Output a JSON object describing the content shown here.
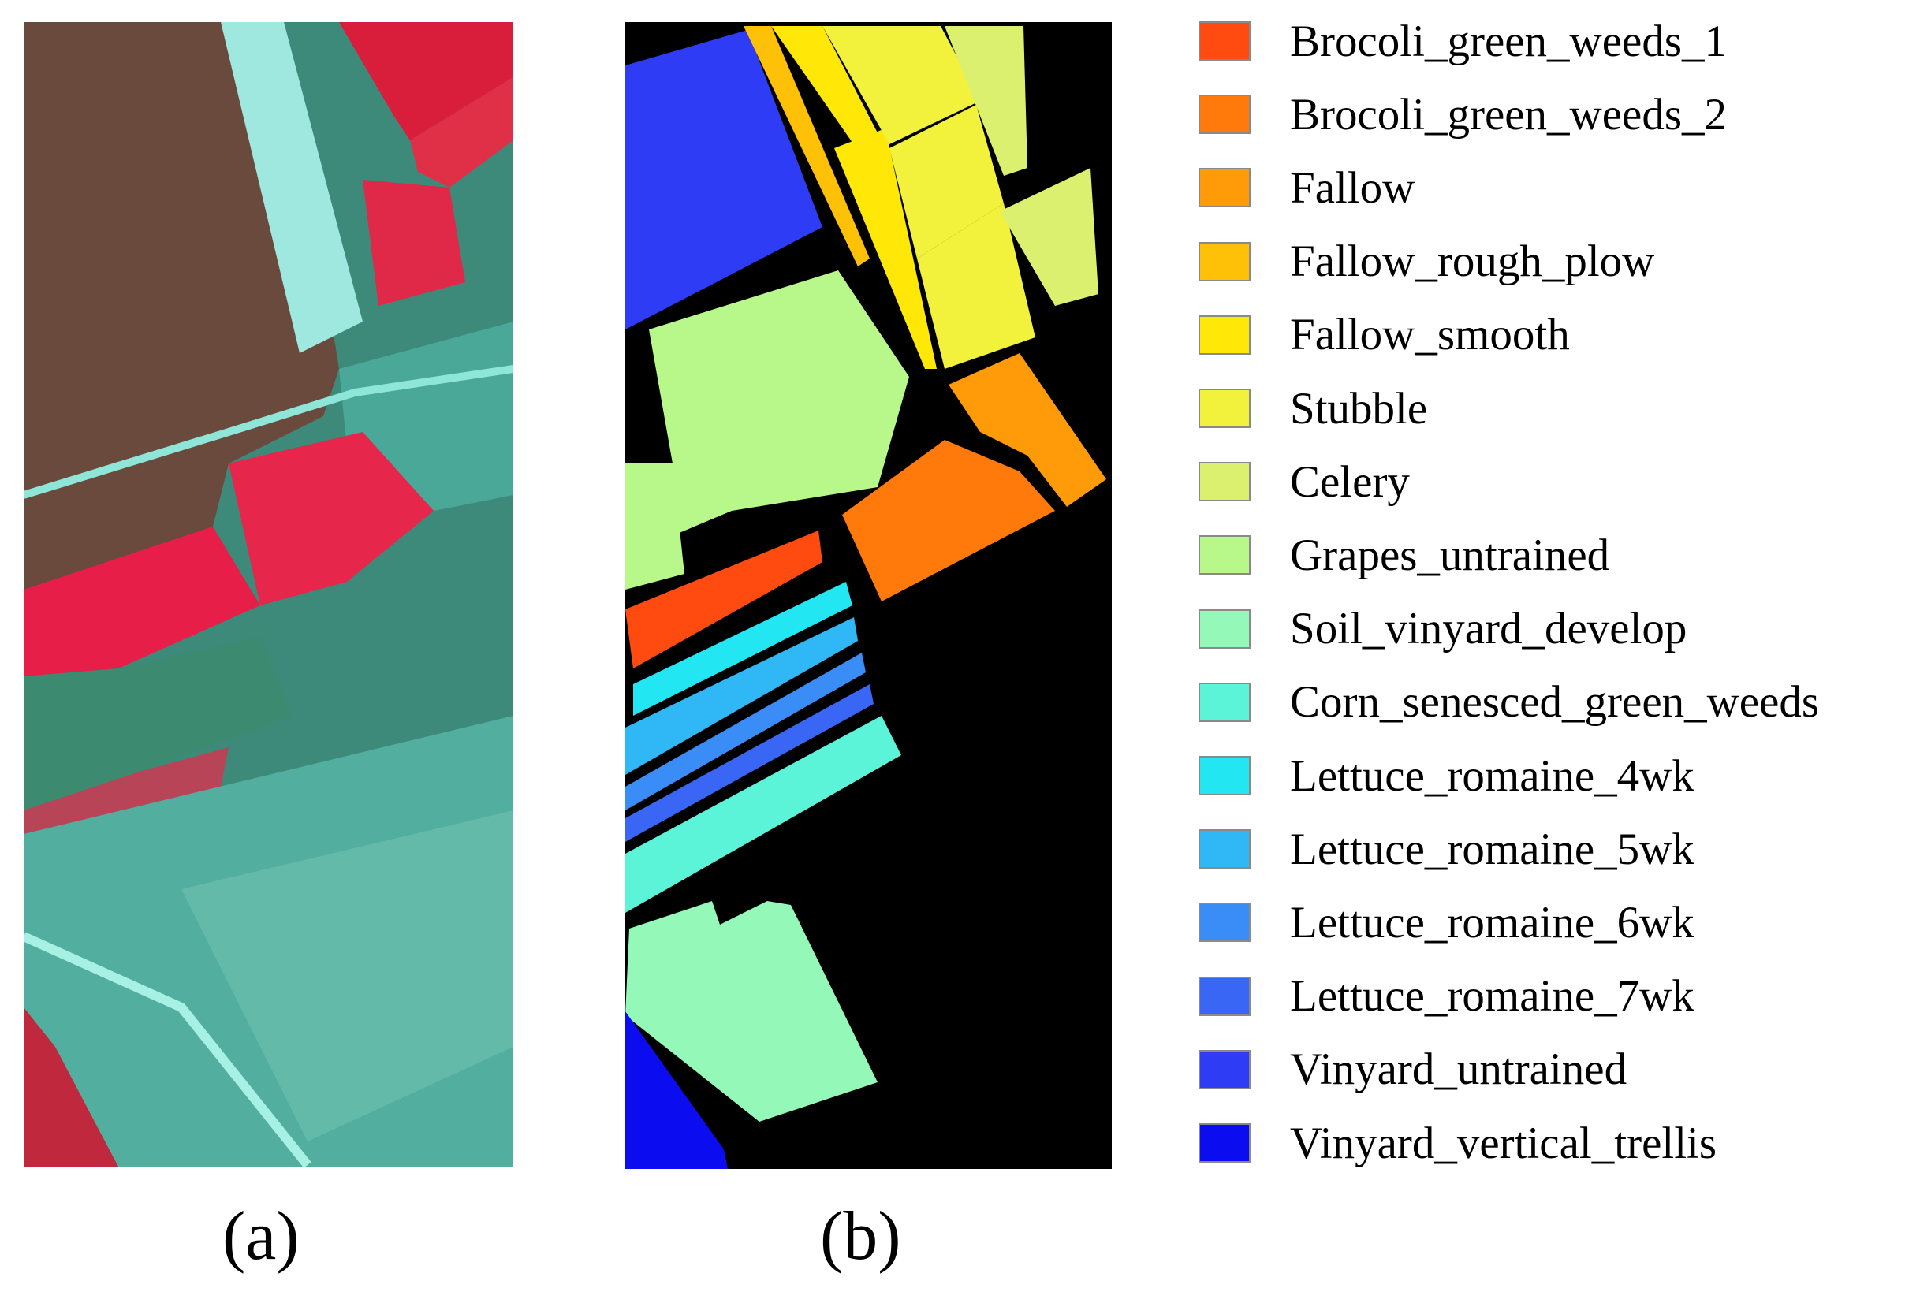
{
  "captions": {
    "a": "(a)",
    "b": "(b)"
  },
  "legend": [
    {
      "label": "Brocoli_green_weeds_1",
      "color": "#ff4a10"
    },
    {
      "label": "Brocoli_green_weeds_2",
      "color": "#ff7a0a"
    },
    {
      "label": "Fallow",
      "color": "#ff9a08"
    },
    {
      "label": "Fallow_rough_plow",
      "color": "#ffc008"
    },
    {
      "label": "Fallow_smooth",
      "color": "#ffe808"
    },
    {
      "label": "Stubble",
      "color": "#f2f23c"
    },
    {
      "label": "Celery",
      "color": "#dcf070"
    },
    {
      "label": "Grapes_untrained",
      "color": "#b8f88a"
    },
    {
      "label": "Soil_vinyard_develop",
      "color": "#94f8b8"
    },
    {
      "label": "Corn_senesced_green_weeds",
      "color": "#5cf4d8"
    },
    {
      "label": "Lettuce_romaine_4wk",
      "color": "#22e6f2"
    },
    {
      "label": "Lettuce_romaine_5wk",
      "color": "#30b8f6"
    },
    {
      "label": "Lettuce_romaine_6wk",
      "color": "#3a8cf6"
    },
    {
      "label": "Lettuce_romaine_7wk",
      "color": "#3a66f6"
    },
    {
      "label": "Vinyard_untrained",
      "color": "#2e3cf6"
    },
    {
      "label": "Vinyard_vertical_trellis",
      "color": "#0c0cf0"
    }
  ],
  "map_colors": {
    "background": "#000000"
  }
}
